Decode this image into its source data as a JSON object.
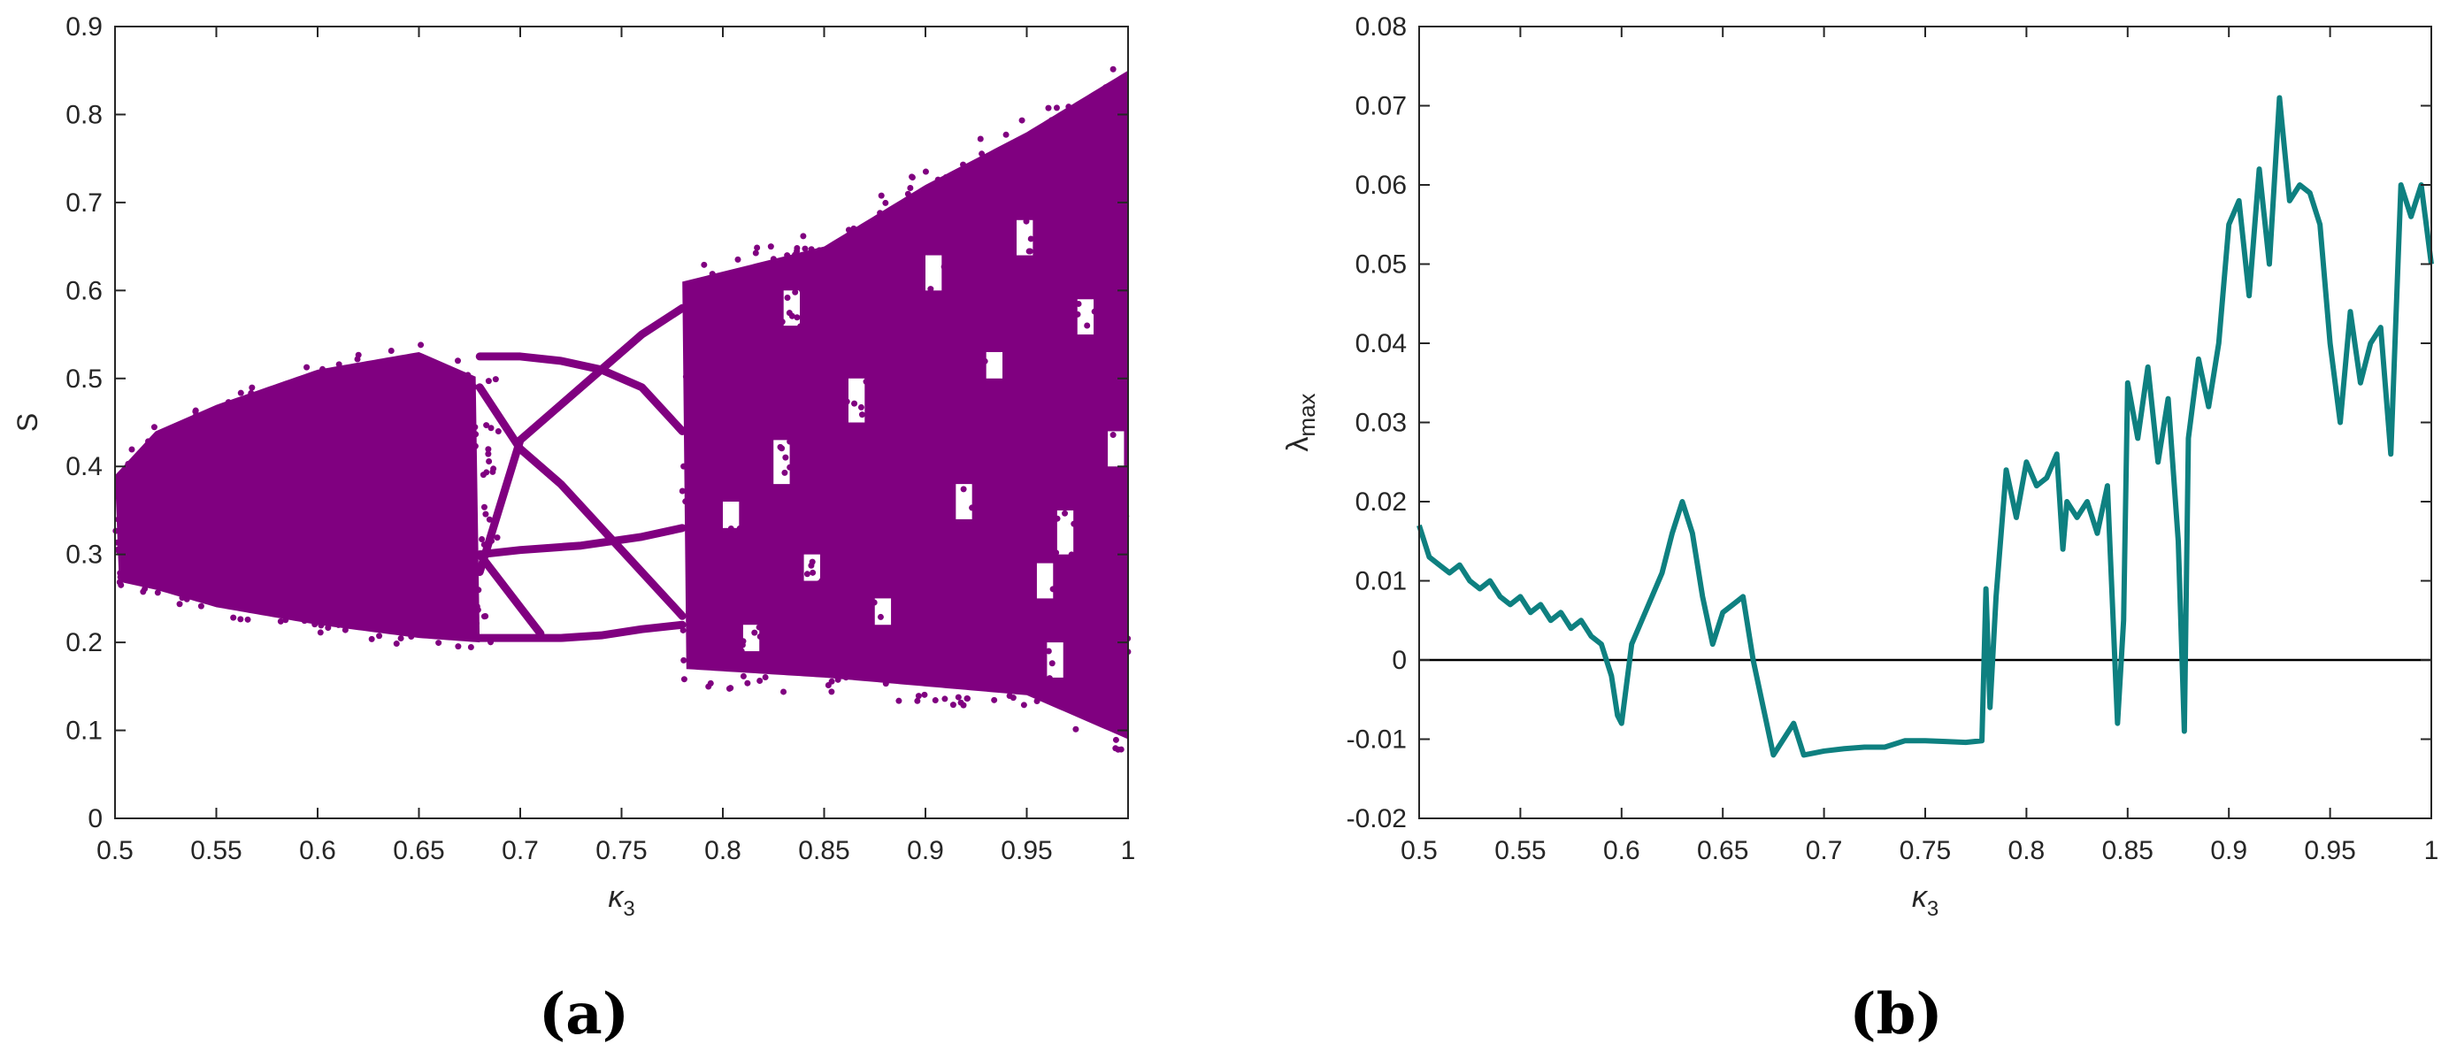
{
  "chart_data": [
    {
      "type": "scatter",
      "title": "",
      "panel_label": "(a)",
      "xlabel": "κ",
      "xlabel_sub": "3",
      "ylabel": "S",
      "xlim": [
        0.5,
        1
      ],
      "ylim": [
        0,
        0.9
      ],
      "xticks": [
        "0.5",
        "0.55",
        "0.6",
        "0.65",
        "0.7",
        "0.75",
        "0.8",
        "0.85",
        "0.9",
        "0.95",
        "1"
      ],
      "yticks": [
        "0",
        "0.1",
        "0.2",
        "0.3",
        "0.4",
        "0.5",
        "0.6",
        "0.7",
        "0.8",
        "0.9"
      ],
      "color": "#800080",
      "description_of_structure": "bifurcation diagram",
      "envelope": [
        {
          "x": 0.5,
          "lo": 0.27,
          "hi": 0.39
        },
        {
          "x": 0.52,
          "lo": 0.26,
          "hi": 0.44
        },
        {
          "x": 0.55,
          "lo": 0.24,
          "hi": 0.47
        },
        {
          "x": 0.6,
          "lo": 0.22,
          "hi": 0.51
        },
        {
          "x": 0.65,
          "lo": 0.205,
          "hi": 0.53
        },
        {
          "x": 0.68,
          "lo": 0.2,
          "hi": 0.5
        }
      ],
      "branches": [
        {
          "name": "upper",
          "x": [
            0.68,
            0.7,
            0.72,
            0.74,
            0.76,
            0.78
          ],
          "y": [
            0.525,
            0.525,
            0.52,
            0.51,
            0.49,
            0.44
          ]
        },
        {
          "name": "lower",
          "x": [
            0.68,
            0.7,
            0.72,
            0.74,
            0.76,
            0.78
          ],
          "y": [
            0.205,
            0.205,
            0.205,
            0.208,
            0.215,
            0.22
          ]
        },
        {
          "name": "rising",
          "x": [
            0.68,
            0.7,
            0.72,
            0.74,
            0.76,
            0.78
          ],
          "y": [
            0.28,
            0.43,
            0.47,
            0.51,
            0.55,
            0.58
          ]
        },
        {
          "name": "falling",
          "x": [
            0.68,
            0.7,
            0.72,
            0.74,
            0.76,
            0.78
          ],
          "y": [
            0.49,
            0.42,
            0.38,
            0.33,
            0.28,
            0.23
          ]
        },
        {
          "name": "middle-up",
          "x": [
            0.68,
            0.7,
            0.73,
            0.76,
            0.78
          ],
          "y": [
            0.3,
            0.305,
            0.31,
            0.32,
            0.33
          ]
        },
        {
          "name": "middle-down",
          "x": [
            0.68,
            0.69,
            0.7,
            0.71
          ],
          "y": [
            0.3,
            0.27,
            0.24,
            0.21
          ]
        }
      ],
      "chaotic_band": [
        {
          "x": 0.78,
          "lo": 0.17,
          "hi": 0.61
        },
        {
          "x": 0.85,
          "lo": 0.16,
          "hi": 0.65
        },
        {
          "x": 0.9,
          "lo": 0.15,
          "hi": 0.72
        },
        {
          "x": 0.95,
          "lo": 0.14,
          "hi": 0.78
        },
        {
          "x": 1.0,
          "lo": 0.09,
          "hi": 0.85
        }
      ]
    },
    {
      "type": "line",
      "title": "",
      "panel_label": "(b)",
      "xlabel": "κ",
      "xlabel_sub": "3",
      "ylabel": "λ",
      "ylabel_sub": "max",
      "xlim": [
        0.5,
        1
      ],
      "ylim": [
        -0.02,
        0.08
      ],
      "xticks": [
        "0.5",
        "0.55",
        "0.6",
        "0.65",
        "0.7",
        "0.75",
        "0.8",
        "0.85",
        "0.9",
        "0.95",
        "1"
      ],
      "yticks": [
        "-0.02",
        "-0.01",
        "0",
        "0.01",
        "0.02",
        "0.03",
        "0.04",
        "0.05",
        "0.06",
        "0.07",
        "0.08"
      ],
      "color": "#0e8080",
      "reference_line_y": 0,
      "x": [
        0.5,
        0.505,
        0.51,
        0.515,
        0.52,
        0.525,
        0.53,
        0.535,
        0.54,
        0.545,
        0.55,
        0.555,
        0.56,
        0.565,
        0.57,
        0.575,
        0.58,
        0.585,
        0.59,
        0.595,
        0.598,
        0.6,
        0.605,
        0.61,
        0.615,
        0.62,
        0.625,
        0.63,
        0.635,
        0.64,
        0.645,
        0.65,
        0.655,
        0.66,
        0.665,
        0.67,
        0.675,
        0.68,
        0.685,
        0.69,
        0.7,
        0.71,
        0.72,
        0.73,
        0.74,
        0.75,
        0.76,
        0.77,
        0.778,
        0.78,
        0.782,
        0.785,
        0.79,
        0.795,
        0.8,
        0.805,
        0.81,
        0.815,
        0.818,
        0.82,
        0.825,
        0.83,
        0.835,
        0.84,
        0.845,
        0.848,
        0.85,
        0.855,
        0.86,
        0.865,
        0.87,
        0.875,
        0.878,
        0.88,
        0.885,
        0.89,
        0.895,
        0.9,
        0.905,
        0.91,
        0.915,
        0.92,
        0.925,
        0.93,
        0.935,
        0.94,
        0.945,
        0.95,
        0.955,
        0.96,
        0.965,
        0.97,
        0.975,
        0.98,
        0.985,
        0.99,
        0.995,
        1.0
      ],
      "y": [
        0.017,
        0.013,
        0.012,
        0.011,
        0.012,
        0.01,
        0.009,
        0.01,
        0.008,
        0.007,
        0.008,
        0.006,
        0.007,
        0.005,
        0.006,
        0.004,
        0.005,
        0.003,
        0.002,
        -0.002,
        -0.007,
        -0.008,
        0.002,
        0.005,
        0.008,
        0.011,
        0.016,
        0.02,
        0.016,
        0.008,
        0.002,
        0.006,
        0.007,
        0.008,
        0.0,
        -0.006,
        -0.012,
        -0.01,
        -0.008,
        -0.012,
        -0.0115,
        -0.0112,
        -0.011,
        -0.011,
        -0.0102,
        -0.0102,
        -0.0103,
        -0.0104,
        -0.0102,
        0.009,
        -0.006,
        0.008,
        0.024,
        0.018,
        0.025,
        0.022,
        0.023,
        0.026,
        0.014,
        0.02,
        0.018,
        0.02,
        0.016,
        0.022,
        -0.008,
        0.005,
        0.035,
        0.028,
        0.037,
        0.025,
        0.033,
        0.015,
        -0.009,
        0.028,
        0.038,
        0.032,
        0.04,
        0.055,
        0.058,
        0.046,
        0.062,
        0.05,
        0.071,
        0.058,
        0.06,
        0.059,
        0.055,
        0.04,
        0.03,
        0.044,
        0.035,
        0.04,
        0.042,
        0.026,
        0.06,
        0.056,
        0.06,
        0.05
      ]
    }
  ]
}
